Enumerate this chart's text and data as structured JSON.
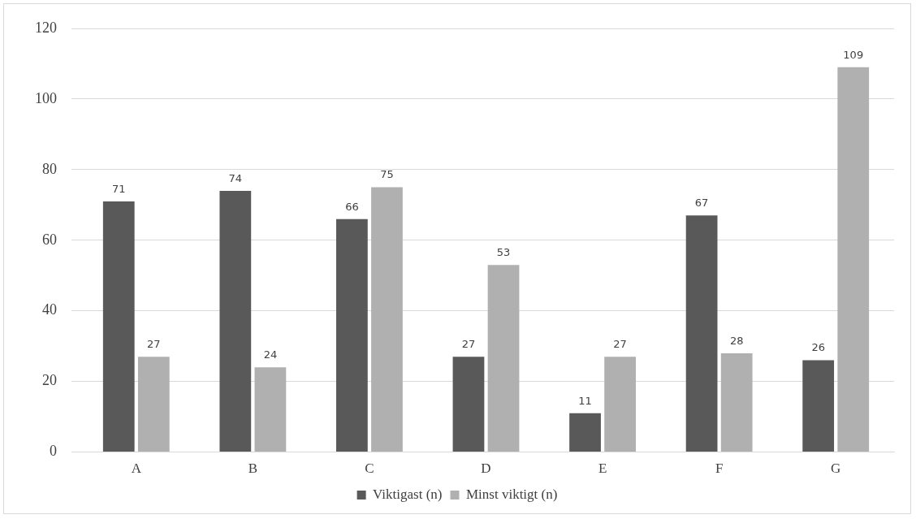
{
  "chart_data": {
    "type": "bar",
    "categories": [
      "A",
      "B",
      "C",
      "D",
      "E",
      "F",
      "G"
    ],
    "series": [
      {
        "name": "Viktigast (n)",
        "color": "#595959",
        "values": [
          71,
          74,
          66,
          27,
          11,
          67,
          26
        ]
      },
      {
        "name": "Minst viktigt (n)",
        "color": "#b0b0b0",
        "values": [
          27,
          24,
          75,
          53,
          27,
          28,
          109
        ]
      }
    ],
    "ylim": [
      0,
      120
    ],
    "yticks": [
      0,
      20,
      40,
      60,
      80,
      100,
      120
    ],
    "grid": "y",
    "legend": "bottom",
    "data_labels": true
  }
}
